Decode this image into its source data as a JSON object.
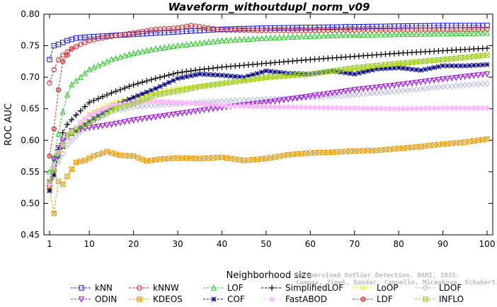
{
  "chart_data": {
    "type": "line",
    "title": "Waveform_withoutdupl_norm_v09",
    "xlabel": "Neighborhood size",
    "ylabel": "ROC AUC",
    "xlim": [
      0,
      100
    ],
    "ylim": [
      0.45,
      0.8
    ],
    "xticks": [
      1,
      10,
      20,
      30,
      40,
      50,
      60,
      70,
      80,
      90,
      100
    ],
    "yticks": [
      0.45,
      0.5,
      0.55,
      0.6,
      0.65,
      0.7,
      0.75,
      0.8
    ],
    "grid": false,
    "legend_position": "bottom",
    "credit": [
      "Campos, Zimek, Sander, Campello, Micenkova, Schubert, Assent, Houle",
      "Unsupervised Outlier Detection. DAMI, 2015."
    ],
    "series": [
      {
        "name": "kNN",
        "color": "#1010ee",
        "marker": "square",
        "points": [
          [
            1,
            0.728
          ],
          [
            2,
            0.75
          ],
          [
            3,
            0.752
          ],
          [
            5,
            0.758
          ],
          [
            7,
            0.762
          ],
          [
            10,
            0.764
          ],
          [
            15,
            0.766
          ],
          [
            20,
            0.768
          ],
          [
            30,
            0.772
          ],
          [
            40,
            0.776
          ],
          [
            50,
            0.778
          ],
          [
            60,
            0.779
          ],
          [
            70,
            0.78
          ],
          [
            80,
            0.781
          ],
          [
            90,
            0.782
          ],
          [
            100,
            0.782
          ]
        ]
      },
      {
        "name": "kNNW",
        "color": "#dd2020",
        "marker": "circle",
        "points": [
          [
            1,
            0.691
          ],
          [
            2,
            0.712
          ],
          [
            3,
            0.728
          ],
          [
            4,
            0.735
          ],
          [
            6,
            0.745
          ],
          [
            8,
            0.752
          ],
          [
            10,
            0.758
          ],
          [
            15,
            0.765
          ],
          [
            20,
            0.77
          ],
          [
            25,
            0.776
          ],
          [
            30,
            0.778
          ],
          [
            33,
            0.782
          ],
          [
            40,
            0.775
          ],
          [
            50,
            0.774
          ],
          [
            60,
            0.774
          ],
          [
            70,
            0.775
          ],
          [
            80,
            0.775
          ],
          [
            90,
            0.775
          ],
          [
            100,
            0.776
          ]
        ]
      },
      {
        "name": "LOF",
        "color": "#22cc22",
        "marker": "triangle-up",
        "points": [
          [
            1,
            0.55
          ],
          [
            2,
            0.572
          ],
          [
            3,
            0.61
          ],
          [
            4,
            0.645
          ],
          [
            5,
            0.672
          ],
          [
            6,
            0.688
          ],
          [
            8,
            0.7
          ],
          [
            10,
            0.712
          ],
          [
            15,
            0.728
          ],
          [
            20,
            0.738
          ],
          [
            25,
            0.745
          ],
          [
            30,
            0.75
          ],
          [
            40,
            0.758
          ],
          [
            50,
            0.762
          ],
          [
            60,
            0.765
          ],
          [
            70,
            0.767
          ],
          [
            80,
            0.768
          ],
          [
            90,
            0.769
          ],
          [
            100,
            0.77
          ]
        ]
      },
      {
        "name": "SimplifiedLOF",
        "color": "#000000",
        "marker": "plus",
        "points": [
          [
            1,
            0.528
          ],
          [
            2,
            0.552
          ],
          [
            3,
            0.585
          ],
          [
            4,
            0.612
          ],
          [
            5,
            0.625
          ],
          [
            7,
            0.64
          ],
          [
            10,
            0.66
          ],
          [
            15,
            0.675
          ],
          [
            20,
            0.688
          ],
          [
            25,
            0.698
          ],
          [
            30,
            0.707
          ],
          [
            35,
            0.712
          ],
          [
            40,
            0.716
          ],
          [
            50,
            0.722
          ],
          [
            60,
            0.728
          ],
          [
            70,
            0.733
          ],
          [
            80,
            0.738
          ],
          [
            90,
            0.742
          ],
          [
            100,
            0.746
          ]
        ]
      },
      {
        "name": "LoOP",
        "color": "#f0f000",
        "marker": "x",
        "points": [
          [
            1,
            0.52
          ],
          [
            3,
            0.572
          ],
          [
            5,
            0.605
          ],
          [
            10,
            0.642
          ],
          [
            15,
            0.658
          ],
          [
            20,
            0.668
          ],
          [
            30,
            0.682
          ],
          [
            40,
            0.69
          ],
          [
            50,
            0.698
          ],
          [
            60,
            0.705
          ],
          [
            70,
            0.712
          ],
          [
            80,
            0.72
          ],
          [
            90,
            0.728
          ],
          [
            100,
            0.735
          ]
        ]
      },
      {
        "name": "LDOF",
        "color": "#b8b8ee",
        "marker": "diamond",
        "points": [
          [
            1,
            0.522
          ],
          [
            3,
            0.565
          ],
          [
            5,
            0.592
          ],
          [
            10,
            0.628
          ],
          [
            15,
            0.645
          ],
          [
            20,
            0.653
          ],
          [
            30,
            0.658
          ],
          [
            40,
            0.662
          ],
          [
            50,
            0.665
          ],
          [
            60,
            0.668
          ],
          [
            70,
            0.672
          ],
          [
            80,
            0.678
          ],
          [
            90,
            0.685
          ],
          [
            100,
            0.69
          ]
        ]
      },
      {
        "name": "ODIN",
        "color": "#9900ee",
        "marker": "triangle-down",
        "points": [
          [
            1,
            0.535
          ],
          [
            2,
            0.57
          ],
          [
            3,
            0.588
          ],
          [
            4,
            0.6
          ],
          [
            6,
            0.615
          ],
          [
            10,
            0.62
          ],
          [
            15,
            0.625
          ],
          [
            20,
            0.632
          ],
          [
            30,
            0.642
          ],
          [
            40,
            0.652
          ],
          [
            50,
            0.66
          ],
          [
            60,
            0.67
          ],
          [
            70,
            0.68
          ],
          [
            80,
            0.688
          ],
          [
            90,
            0.697
          ],
          [
            100,
            0.705
          ]
        ]
      },
      {
        "name": "KDEOS",
        "color": "#ee9900",
        "marker": "square-x",
        "points": [
          [
            1,
            0.522
          ],
          [
            2,
            0.484
          ],
          [
            3,
            0.535
          ],
          [
            4,
            0.53
          ],
          [
            5,
            0.543
          ],
          [
            7,
            0.565
          ],
          [
            9,
            0.568
          ],
          [
            11,
            0.575
          ],
          [
            14,
            0.582
          ],
          [
            17,
            0.576
          ],
          [
            20,
            0.575
          ],
          [
            23,
            0.567
          ],
          [
            26,
            0.57
          ],
          [
            30,
            0.572
          ],
          [
            35,
            0.571
          ],
          [
            40,
            0.573
          ],
          [
            45,
            0.568
          ],
          [
            50,
            0.571
          ],
          [
            55,
            0.577
          ],
          [
            60,
            0.58
          ],
          [
            65,
            0.581
          ],
          [
            70,
            0.583
          ],
          [
            75,
            0.584
          ],
          [
            80,
            0.587
          ],
          [
            85,
            0.59
          ],
          [
            90,
            0.594
          ],
          [
            95,
            0.597
          ],
          [
            100,
            0.602
          ]
        ]
      },
      {
        "name": "COF",
        "color": "#000088",
        "marker": "star",
        "points": [
          [
            1,
            0.52
          ],
          [
            2,
            0.545
          ],
          [
            3,
            0.575
          ],
          [
            4,
            0.59
          ],
          [
            5,
            0.605
          ],
          [
            7,
            0.615
          ],
          [
            10,
            0.63
          ],
          [
            15,
            0.652
          ],
          [
            20,
            0.668
          ],
          [
            25,
            0.682
          ],
          [
            30,
            0.698
          ],
          [
            35,
            0.705
          ],
          [
            40,
            0.703
          ],
          [
            45,
            0.7
          ],
          [
            50,
            0.71
          ],
          [
            55,
            0.706
          ],
          [
            60,
            0.705
          ],
          [
            65,
            0.71
          ],
          [
            70,
            0.705
          ],
          [
            75,
            0.713
          ],
          [
            80,
            0.715
          ],
          [
            85,
            0.711
          ],
          [
            90,
            0.718
          ],
          [
            95,
            0.718
          ],
          [
            100,
            0.72
          ]
        ]
      },
      {
        "name": "FastABOD",
        "color": "#ffbbff",
        "marker": "diamond-filled",
        "points": [
          [
            1,
            0.53
          ],
          [
            3,
            0.58
          ],
          [
            5,
            0.605
          ],
          [
            8,
            0.628
          ],
          [
            10,
            0.64
          ],
          [
            15,
            0.655
          ],
          [
            20,
            0.66
          ],
          [
            25,
            0.662
          ],
          [
            30,
            0.66
          ],
          [
            40,
            0.655
          ],
          [
            50,
            0.653
          ],
          [
            60,
            0.652
          ],
          [
            70,
            0.651
          ],
          [
            80,
            0.65
          ],
          [
            90,
            0.651
          ],
          [
            100,
            0.651
          ]
        ]
      },
      {
        "name": "LDF",
        "color": "#cc3333",
        "marker": "circle-filled",
        "points": [
          [
            1,
            0.575
          ],
          [
            2,
            0.618
          ],
          [
            3,
            0.68
          ],
          [
            4,
            0.725
          ],
          [
            5,
            0.735
          ],
          [
            6,
            0.745
          ]
        ]
      },
      {
        "name": "INFLO",
        "color": "#99cc33",
        "marker": "square-x",
        "points": [
          [
            1,
            0.535
          ],
          [
            2,
            0.552
          ],
          [
            3,
            0.578
          ],
          [
            5,
            0.608
          ],
          [
            10,
            0.628
          ],
          [
            15,
            0.648
          ],
          [
            20,
            0.658
          ],
          [
            25,
            0.672
          ],
          [
            30,
            0.678
          ],
          [
            35,
            0.685
          ],
          [
            40,
            0.69
          ],
          [
            50,
            0.7
          ],
          [
            60,
            0.705
          ],
          [
            70,
            0.715
          ],
          [
            80,
            0.722
          ],
          [
            90,
            0.728
          ],
          [
            100,
            0.735
          ]
        ]
      }
    ],
    "legend_order": [
      [
        "kNN",
        "kNNW",
        "LOF",
        "SimplifiedLOF",
        "LoOP",
        "LDOF"
      ],
      [
        "ODIN",
        "KDEOS",
        "COF",
        "FastABOD",
        "LDF",
        "INFLO"
      ]
    ]
  }
}
